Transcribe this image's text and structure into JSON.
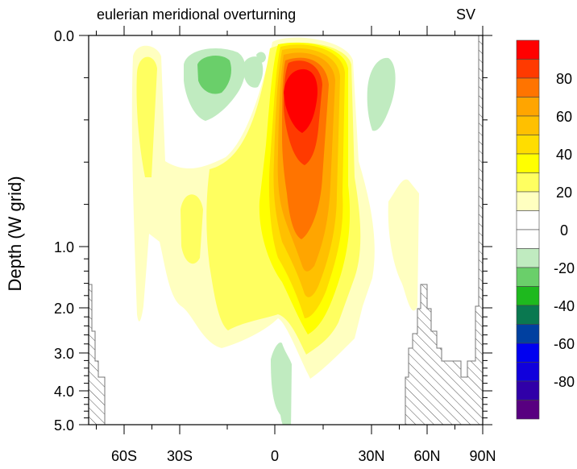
{
  "chart_data": {
    "type": "contour",
    "title": "eulerian meridional overturning",
    "units": "SV",
    "ylabel": "Depth (W grid)",
    "xlabel": "",
    "x_ticks": [
      {
        "label": "60S",
        "value": -60
      },
      {
        "label": "30S",
        "value": -30
      },
      {
        "label": "0",
        "value": 0
      },
      {
        "label": "30N",
        "value": 30
      },
      {
        "label": "60N",
        "value": 60
      },
      {
        "label": "90N",
        "value": 90
      }
    ],
    "y_ticks": [
      {
        "label": "0.0",
        "value": 0
      },
      {
        "label": "1.0",
        "value": 1
      },
      {
        "label": "2.0",
        "value": 2
      },
      {
        "label": "3.0",
        "value": 3
      },
      {
        "label": "4.0",
        "value": 4
      },
      {
        "label": "5.0",
        "value": 5
      }
    ],
    "ylim": [
      0,
      5
    ],
    "colorbar": {
      "levels": [
        -100,
        -90,
        -80,
        -70,
        -60,
        -50,
        -40,
        -30,
        -20,
        -10,
        0,
        10,
        20,
        30,
        40,
        50,
        60,
        70,
        80,
        90,
        100
      ],
      "labels": [
        "80",
        "60",
        "40",
        "20",
        "0",
        "-20",
        "-40",
        "-60",
        "-80"
      ],
      "label_values": [
        80,
        60,
        40,
        20,
        0,
        -20,
        -40,
        -60,
        -80
      ],
      "colors_top_to_bottom": [
        "#FF0000",
        "#FF3A00",
        "#FF7400",
        "#FFA500",
        "#FFC000",
        "#FFDD00",
        "#FFFF00",
        "#FFFF60",
        "#FFFFC0",
        "#FFFFFF",
        "#FFFFFF",
        "#C0EBC0",
        "#6ACF6A",
        "#1EB91E",
        "#0A7850",
        "#0040A0",
        "#0000F0",
        "#1000DC",
        "#3000A8",
        "#580080"
      ]
    },
    "features": [
      {
        "name": "main cell max",
        "approx_value": ">90",
        "lat": 5,
        "depth_km": 0.3
      },
      {
        "name": "southern negative cell",
        "approx_value": -20,
        "lat": -25,
        "depth_km": 0.2
      }
    ]
  }
}
